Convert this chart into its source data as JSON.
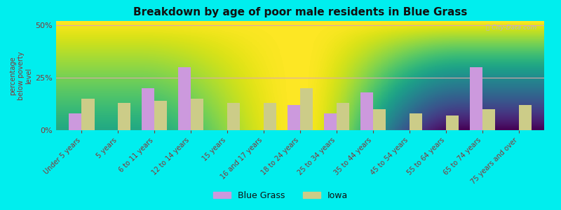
{
  "title": "Breakdown by age of poor male residents in Blue Grass",
  "ylabel": "percentage\nbelow poverty\nlevel",
  "categories": [
    "Under 5 years",
    "5 years",
    "6 to 11 years",
    "12 to 14 years",
    "15 years",
    "16 and 17 years",
    "18 to 24 years",
    "25 to 34 years",
    "35 to 44 years",
    "45 to 54 years",
    "55 to 64 years",
    "65 to 74 years",
    "75 years and over"
  ],
  "blue_grass": [
    8,
    0,
    20,
    30,
    0,
    0,
    12,
    8,
    18,
    0,
    0,
    30,
    0
  ],
  "iowa": [
    15,
    13,
    14,
    15,
    13,
    13,
    20,
    13,
    10,
    8,
    7,
    10,
    12
  ],
  "ylim": [
    0,
    52
  ],
  "yticks": [
    0,
    25,
    50
  ],
  "ytick_labels": [
    "0%",
    "25%",
    "50%"
  ],
  "bg_color_top": "#e8e8e8",
  "bg_color_bottom": "#d8e8c0",
  "bar_color_bg": "#cc99dd",
  "bar_color_iowa": "#cccc88",
  "outer_bg": "#00eeee",
  "title_color": "#111111",
  "axis_label_color": "#883333",
  "tick_label_color": "#883333",
  "legend_text_color": "#111111",
  "legend_label_bg": "Blue Grass",
  "legend_label_iowa": "Iowa",
  "bar_width": 0.35,
  "grid_color_25": "#ddaaaa",
  "grid_color_50": "#ddaaaa",
  "watermark": "City-Data.com"
}
